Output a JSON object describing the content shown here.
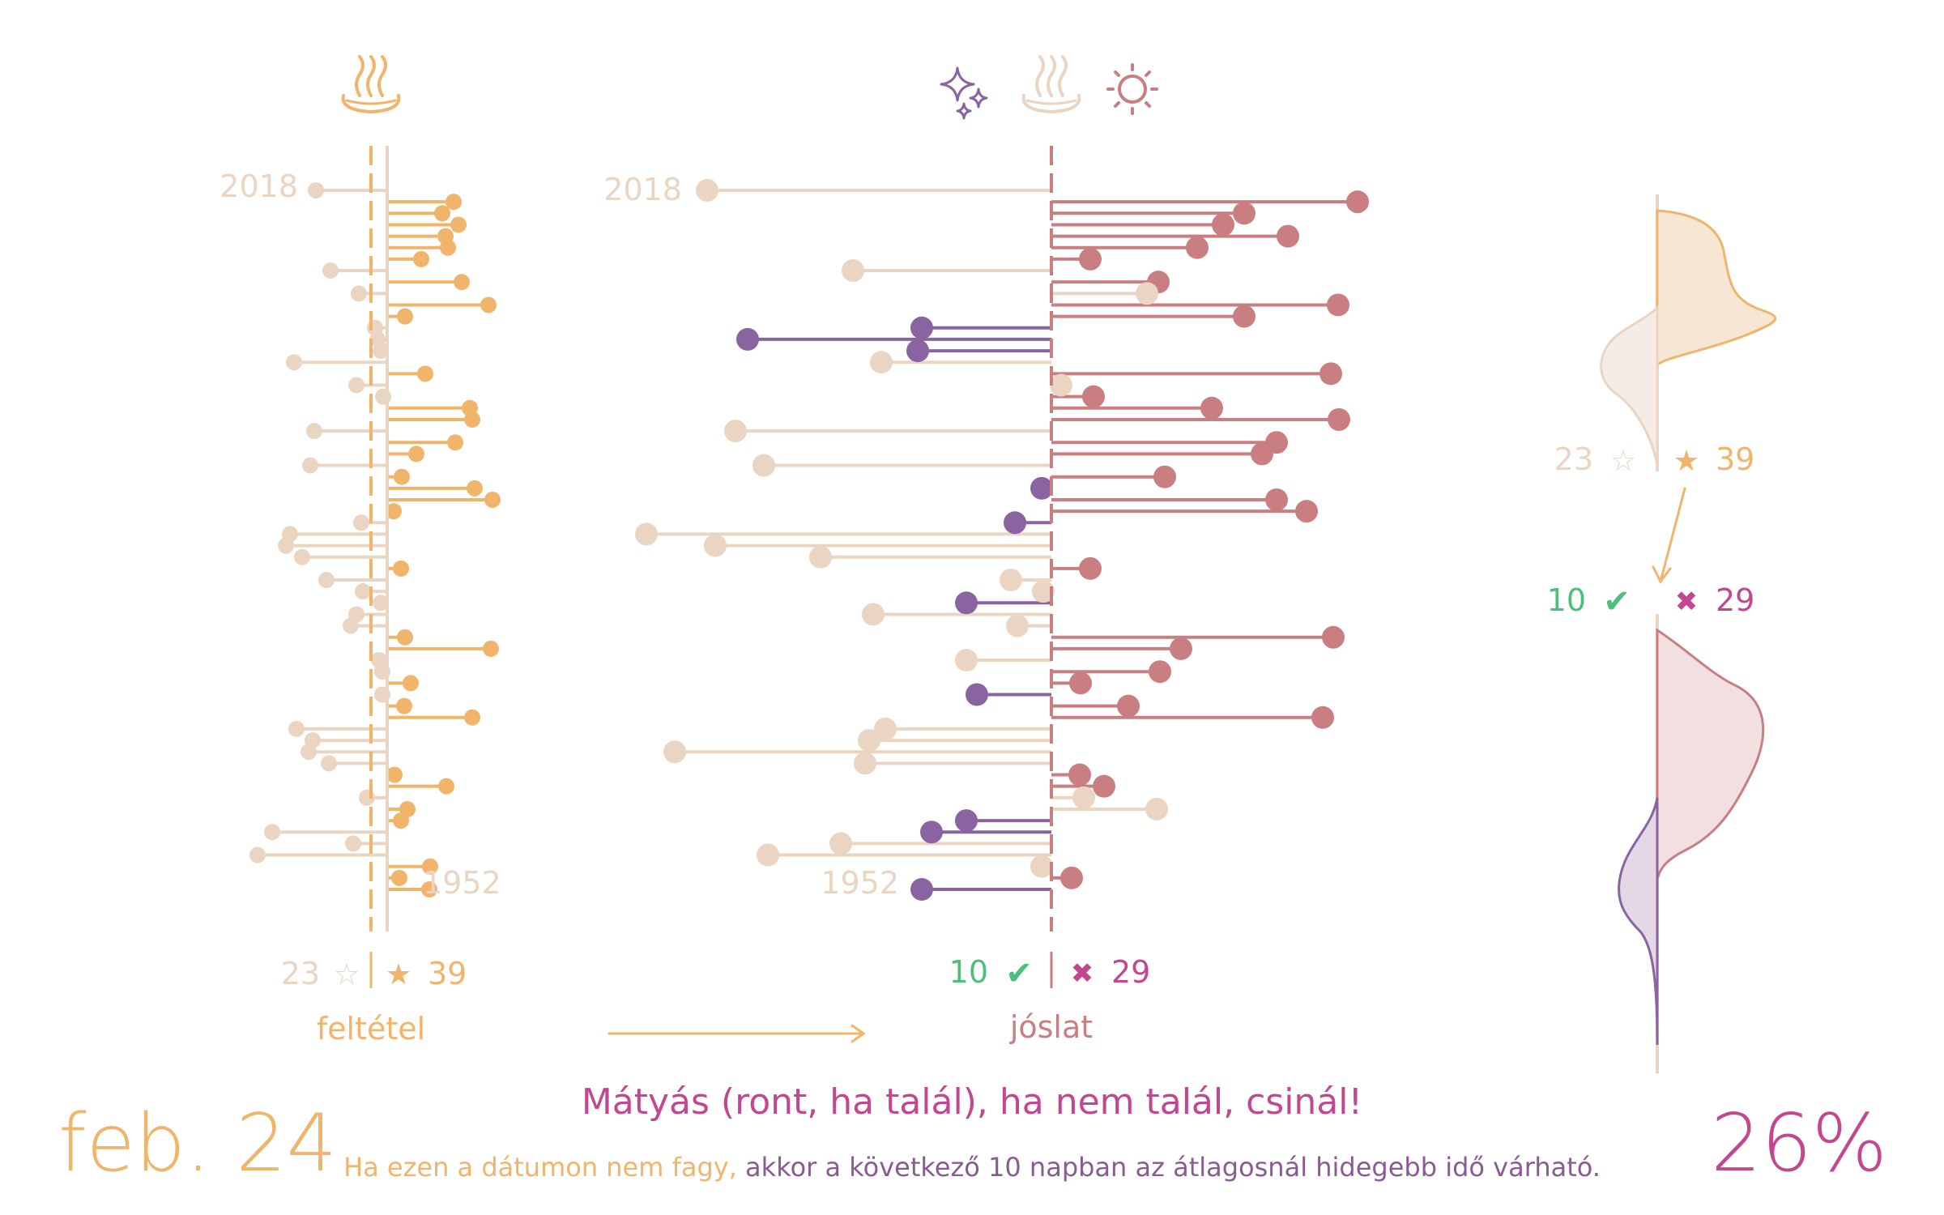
{
  "header": {
    "date": "feb. 24",
    "proverb": "Mátyás (ront, ha talál), ha nem talál, csinál!",
    "sub_condition": "Ha ezen a dátumon nem fagy,",
    "sub_prediction": "akkor a következő 10 napban az átlagosnál hidegebb idő várható.",
    "percent": "26%"
  },
  "colors": {
    "condition": "#f0b46b",
    "neutral": "#ead5c2",
    "hit": "#8a64a0",
    "miss": "#c97f82",
    "green": "#4cbf7a",
    "magenta": "#c2478f"
  },
  "icons": {
    "condition": "hot-spring-icon",
    "prediction": [
      "sparkles-icon",
      "hot-spring-icon",
      "sun-icon"
    ]
  },
  "labels": {
    "condition_axis": "feltétel",
    "prediction_axis": "jóslat",
    "year_top": "2018",
    "year_bottom": "1952",
    "count_nonfreeze": "23",
    "count_freeze": "39",
    "count_hit": "10",
    "count_miss": "29",
    "star_outline": "☆",
    "star_filled": "★",
    "check": "✔",
    "cross": "✖"
  },
  "chart_data": [
    {
      "type": "lollipop",
      "name": "feltétel",
      "x_range": [
        "1952",
        "2018"
      ],
      "series": [
        {
          "name": "☆",
          "value": 23
        },
        {
          "name": "★",
          "value": 39
        }
      ]
    },
    {
      "type": "lollipop",
      "name": "jóslat",
      "x_range": [
        "1952",
        "2018"
      ],
      "series": [
        {
          "name": "✔",
          "value": 10
        },
        {
          "name": "✖",
          "value": 29
        }
      ]
    },
    {
      "type": "area",
      "name": "distribution",
      "series": [
        {
          "name": "☆",
          "value": 23
        },
        {
          "name": "★",
          "value": 39
        },
        {
          "name": "✔",
          "value": 10
        },
        {
          "name": "✖",
          "value": 29
        }
      ]
    }
  ],
  "years": {
    "rows": [
      {
        "y": 2018,
        "c": -88,
        "p": -425,
        "k": "n"
      },
      {
        "y": 2017,
        "c": 82,
        "p": 378,
        "k": "m"
      },
      {
        "y": 2016,
        "c": 68,
        "p": 238,
        "k": "m"
      },
      {
        "y": 2015,
        "c": 88,
        "p": 212,
        "k": "m"
      },
      {
        "y": 2014,
        "c": 72,
        "p": 292,
        "k": "m"
      },
      {
        "y": 2013,
        "c": 75,
        "p": 180,
        "k": "m"
      },
      {
        "y": 2012,
        "c": 42,
        "p": 48,
        "k": "m"
      },
      {
        "y": 2011,
        "c": -70,
        "p": -245,
        "k": "n"
      },
      {
        "y": 2010,
        "c": 92,
        "p": 132,
        "k": "m"
      },
      {
        "y": 2009,
        "c": -35,
        "p": 118,
        "k": "n"
      },
      {
        "y": 2008,
        "c": 125,
        "p": 354,
        "k": "m"
      },
      {
        "y": 2007,
        "c": 22,
        "p": 238,
        "k": "m"
      },
      {
        "y": 2006,
        "c": -15,
        "p": -160,
        "k": "h"
      },
      {
        "y": 2005,
        "c": -12,
        "p": -375,
        "k": "h"
      },
      {
        "y": 2004,
        "c": -8,
        "p": -165,
        "k": "h"
      },
      {
        "y": 2003,
        "c": -115,
        "p": -210,
        "k": "n"
      },
      {
        "y": 2002,
        "c": 47,
        "p": 345,
        "k": "m"
      },
      {
        "y": 2001,
        "c": -38,
        "p": 12,
        "k": "n"
      },
      {
        "y": 2000,
        "c": -5,
        "p": 52,
        "k": "m"
      },
      {
        "y": 1999,
        "c": 102,
        "p": 198,
        "k": "m"
      },
      {
        "y": 1998,
        "c": 105,
        "p": 355,
        "k": "m"
      },
      {
        "y": 1997,
        "c": -90,
        "p": -390,
        "k": "n"
      },
      {
        "y": 1996,
        "c": 84,
        "p": 278,
        "k": "m"
      },
      {
        "y": 1995,
        "c": 36,
        "p": 260,
        "k": "m"
      },
      {
        "y": 1994,
        "c": -95,
        "p": -355,
        "k": "n"
      },
      {
        "y": 1993,
        "c": 18,
        "p": 140,
        "k": "m"
      },
      {
        "y": 1992,
        "c": 108,
        "p": -12,
        "k": "h"
      },
      {
        "y": 1991,
        "c": 130,
        "p": 278,
        "k": "m"
      },
      {
        "y": 1990,
        "c": 8,
        "p": 315,
        "k": "m"
      },
      {
        "y": 1989,
        "c": -32,
        "p": -45,
        "k": "h"
      },
      {
        "y": 1988,
        "c": -120,
        "p": -500,
        "k": "n"
      },
      {
        "y": 1987,
        "c": -125,
        "p": -415,
        "k": "n"
      },
      {
        "y": 1986,
        "c": -105,
        "p": -285,
        "k": "n"
      },
      {
        "y": 1985,
        "c": 17,
        "p": 48,
        "k": "m"
      },
      {
        "y": 1984,
        "c": -75,
        "p": -50,
        "k": "n"
      },
      {
        "y": 1983,
        "c": -30,
        "p": -10,
        "k": "n"
      },
      {
        "y": 1982,
        "c": -8,
        "p": -105,
        "k": "h"
      },
      {
        "y": 1981,
        "c": -38,
        "p": -220,
        "k": "n"
      },
      {
        "y": 1980,
        "c": -45,
        "p": -42,
        "k": "n"
      },
      {
        "y": 1979,
        "c": 22,
        "p": 348,
        "k": "m"
      },
      {
        "y": 1978,
        "c": 128,
        "p": 160,
        "k": "m"
      },
      {
        "y": 1977,
        "c": -10,
        "p": -105,
        "k": "n"
      },
      {
        "y": 1976,
        "c": -6,
        "p": 134,
        "k": "m"
      },
      {
        "y": 1975,
        "c": 29,
        "p": 36,
        "k": "m"
      },
      {
        "y": 1974,
        "c": -6,
        "p": -92,
        "k": "h"
      },
      {
        "y": 1973,
        "c": 21,
        "p": 95,
        "k": "m"
      },
      {
        "y": 1972,
        "c": 105,
        "p": 335,
        "k": "m"
      },
      {
        "y": 1971,
        "c": -112,
        "p": -205,
        "k": "n"
      },
      {
        "y": 1970,
        "c": -92,
        "p": -225,
        "k": "n"
      },
      {
        "y": 1969,
        "c": -97,
        "p": -465,
        "k": "n"
      },
      {
        "y": 1968,
        "c": -72,
        "p": -230,
        "k": "n"
      },
      {
        "y": 1967,
        "c": 9,
        "p": 35,
        "k": "m"
      },
      {
        "y": 1966,
        "c": 73,
        "p": 65,
        "k": "m"
      },
      {
        "y": 1965,
        "c": -25,
        "p": 40,
        "k": "n"
      },
      {
        "y": 1964,
        "c": 25,
        "p": 130,
        "k": "n"
      },
      {
        "y": 1963,
        "c": 17,
        "p": -105,
        "k": "h"
      },
      {
        "y": 1962,
        "c": -142,
        "p": -148,
        "k": "h"
      },
      {
        "y": 1961,
        "c": -42,
        "p": -260,
        "k": "n"
      },
      {
        "y": 1960,
        "c": -160,
        "p": -350,
        "k": "n"
      },
      {
        "y": 1959,
        "c": 53,
        "p": -12,
        "k": "n"
      },
      {
        "y": 1958,
        "c": 15,
        "p": 25,
        "k": "m"
      },
      {
        "y": 1957,
        "c": 52,
        "p": -160,
        "k": "h"
      }
    ]
  }
}
